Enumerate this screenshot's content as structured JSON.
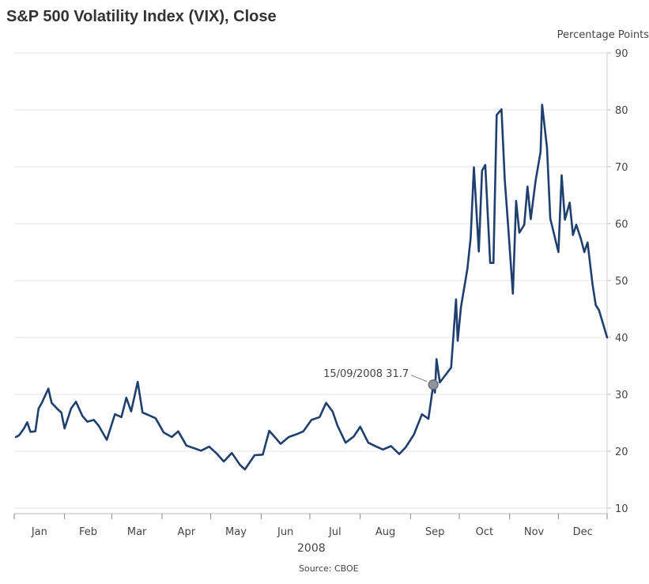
{
  "chart_data": {
    "type": "line",
    "title": "S&P 500 Volatility Index (VIX), Close",
    "ylabel": "Percentage Points",
    "xlabel": "2008",
    "source": "Source: CBOE",
    "ylim": [
      10,
      90
    ],
    "yticks": [
      10,
      20,
      30,
      40,
      50,
      60,
      70,
      80,
      90
    ],
    "grid": true,
    "xlim": [
      "2008-01-01",
      "2008-12-31"
    ],
    "month_ticks": [
      "2008-01-01",
      "2008-02-01",
      "2008-03-01",
      "2008-04-01",
      "2008-05-01",
      "2008-06-01",
      "2008-07-01",
      "2008-08-01",
      "2008-09-01",
      "2008-10-01",
      "2008-11-01",
      "2008-12-01",
      "2008-12-31"
    ],
    "month_labels": [
      "Jan",
      "Feb",
      "Mar",
      "Apr",
      "May",
      "Jun",
      "Jul",
      "Aug",
      "Sep",
      "Oct",
      "Nov",
      "Dec"
    ],
    "series_color": "#1f3f6e",
    "annotation": {
      "date": "2008-09-15",
      "value": 31.7,
      "label": "15/09/2008 31.7"
    },
    "series": [
      {
        "dates": [
          "2008-01-02",
          "2008-01-04",
          "2008-01-07",
          "2008-01-09",
          "2008-01-11",
          "2008-01-14",
          "2008-01-16",
          "2008-01-18",
          "2008-01-22",
          "2008-01-24",
          "2008-01-28",
          "2008-01-30",
          "2008-02-01",
          "2008-02-05",
          "2008-02-08",
          "2008-02-12",
          "2008-02-15",
          "2008-02-19",
          "2008-02-22",
          "2008-02-27",
          "2008-03-03",
          "2008-03-07",
          "2008-03-10",
          "2008-03-13",
          "2008-03-17",
          "2008-03-20",
          "2008-03-25",
          "2008-03-28",
          "2008-04-02",
          "2008-04-07",
          "2008-04-11",
          "2008-04-16",
          "2008-04-21",
          "2008-04-25",
          "2008-04-30",
          "2008-05-05",
          "2008-05-09",
          "2008-05-14",
          "2008-05-19",
          "2008-05-22",
          "2008-05-28",
          "2008-06-02",
          "2008-06-06",
          "2008-06-10",
          "2008-06-13",
          "2008-06-18",
          "2008-06-23",
          "2008-06-27",
          "2008-07-02",
          "2008-07-07",
          "2008-07-11",
          "2008-07-15",
          "2008-07-18",
          "2008-07-23",
          "2008-07-28",
          "2008-08-01",
          "2008-08-06",
          "2008-08-11",
          "2008-08-15",
          "2008-08-20",
          "2008-08-25",
          "2008-08-29",
          "2008-09-03",
          "2008-09-08",
          "2008-09-12",
          "2008-09-15",
          "2008-09-16",
          "2008-09-17",
          "2008-09-19",
          "2008-09-23",
          "2008-09-26",
          "2008-09-29",
          "2008-09-30",
          "2008-10-02",
          "2008-10-06",
          "2008-10-08",
          "2008-10-10",
          "2008-10-13",
          "2008-10-15",
          "2008-10-17",
          "2008-10-20",
          "2008-10-22",
          "2008-10-24",
          "2008-10-27",
          "2008-10-29",
          "2008-10-31",
          "2008-11-03",
          "2008-11-05",
          "2008-11-07",
          "2008-11-10",
          "2008-11-12",
          "2008-11-14",
          "2008-11-17",
          "2008-11-20",
          "2008-11-21",
          "2008-11-24",
          "2008-11-26",
          "2008-12-01",
          "2008-12-03",
          "2008-12-05",
          "2008-12-08",
          "2008-12-10",
          "2008-12-12",
          "2008-12-15",
          "2008-12-17",
          "2008-12-19",
          "2008-12-22",
          "2008-12-24",
          "2008-12-26",
          "2008-12-31"
        ],
        "values": [
          22.5,
          22.8,
          24.0,
          25.1,
          23.4,
          23.5,
          27.5,
          28.5,
          31.0,
          28.5,
          27.3,
          26.8,
          24.0,
          27.5,
          28.7,
          26.2,
          25.2,
          25.5,
          24.5,
          22.0,
          26.5,
          26.0,
          29.4,
          27.0,
          32.2,
          26.8,
          26.2,
          25.8,
          23.3,
          22.5,
          23.5,
          21.0,
          20.5,
          20.1,
          20.8,
          19.5,
          18.2,
          19.7,
          17.6,
          16.8,
          19.3,
          19.4,
          23.6,
          22.3,
          21.3,
          22.5,
          23.0,
          23.5,
          25.5,
          26.0,
          28.5,
          27.0,
          24.5,
          21.5,
          22.6,
          24.3,
          21.5,
          20.8,
          20.3,
          20.9,
          19.5,
          20.7,
          22.9,
          26.5,
          25.7,
          31.7,
          30.3,
          36.2,
          32.1,
          33.6,
          34.7,
          46.7,
          39.4,
          45.3,
          52.1,
          57.5,
          69.9,
          55.1,
          69.3,
          70.3,
          53.1,
          53.1,
          79.1,
          80.1,
          67.8,
          59.8,
          47.7,
          64.0,
          58.4,
          59.8,
          66.5,
          60.8,
          67.6,
          72.6,
          80.9,
          73.3,
          60.9,
          55.0,
          68.5,
          60.7,
          63.7,
          58.0,
          59.8,
          57.2,
          55.0,
          56.7,
          49.4,
          45.7,
          44.8,
          40.0
        ]
      }
    ]
  }
}
